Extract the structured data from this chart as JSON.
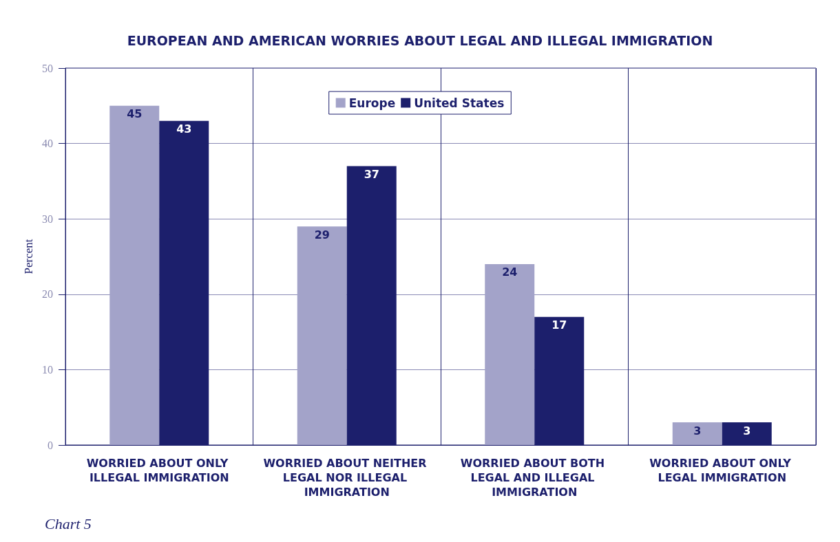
{
  "chart_data": {
    "type": "bar",
    "title": "EUROPEAN AND AMERICAN WORRIES ABOUT LEGAL AND ILLEGAL IMMIGRATION",
    "ylabel": "Percent",
    "categories": [
      "WORRIED ABOUT ONLY ILLEGAL IMMIGRATION",
      "WORRIED ABOUT NEITHER LEGAL NOR ILLEGAL IMMIGRATION",
      "WORRIED ABOUT BOTH LEGAL AND ILLEGAL IMMIGRATION",
      "WORRIED ABOUT ONLY LEGAL IMMIGRATION"
    ],
    "series": [
      {
        "name": "Europe",
        "color": "#a3a3c9",
        "values": [
          45,
          29,
          24,
          3
        ]
      },
      {
        "name": "United States",
        "color": "#1c1f6c",
        "values": [
          43,
          37,
          17,
          3
        ]
      }
    ],
    "ylim": [
      0,
      50
    ],
    "yticks": [
      0,
      10,
      20,
      30,
      40,
      50
    ],
    "grid": true,
    "legend": "top",
    "data_labels": true,
    "annotations": [
      "Chart 5"
    ]
  }
}
